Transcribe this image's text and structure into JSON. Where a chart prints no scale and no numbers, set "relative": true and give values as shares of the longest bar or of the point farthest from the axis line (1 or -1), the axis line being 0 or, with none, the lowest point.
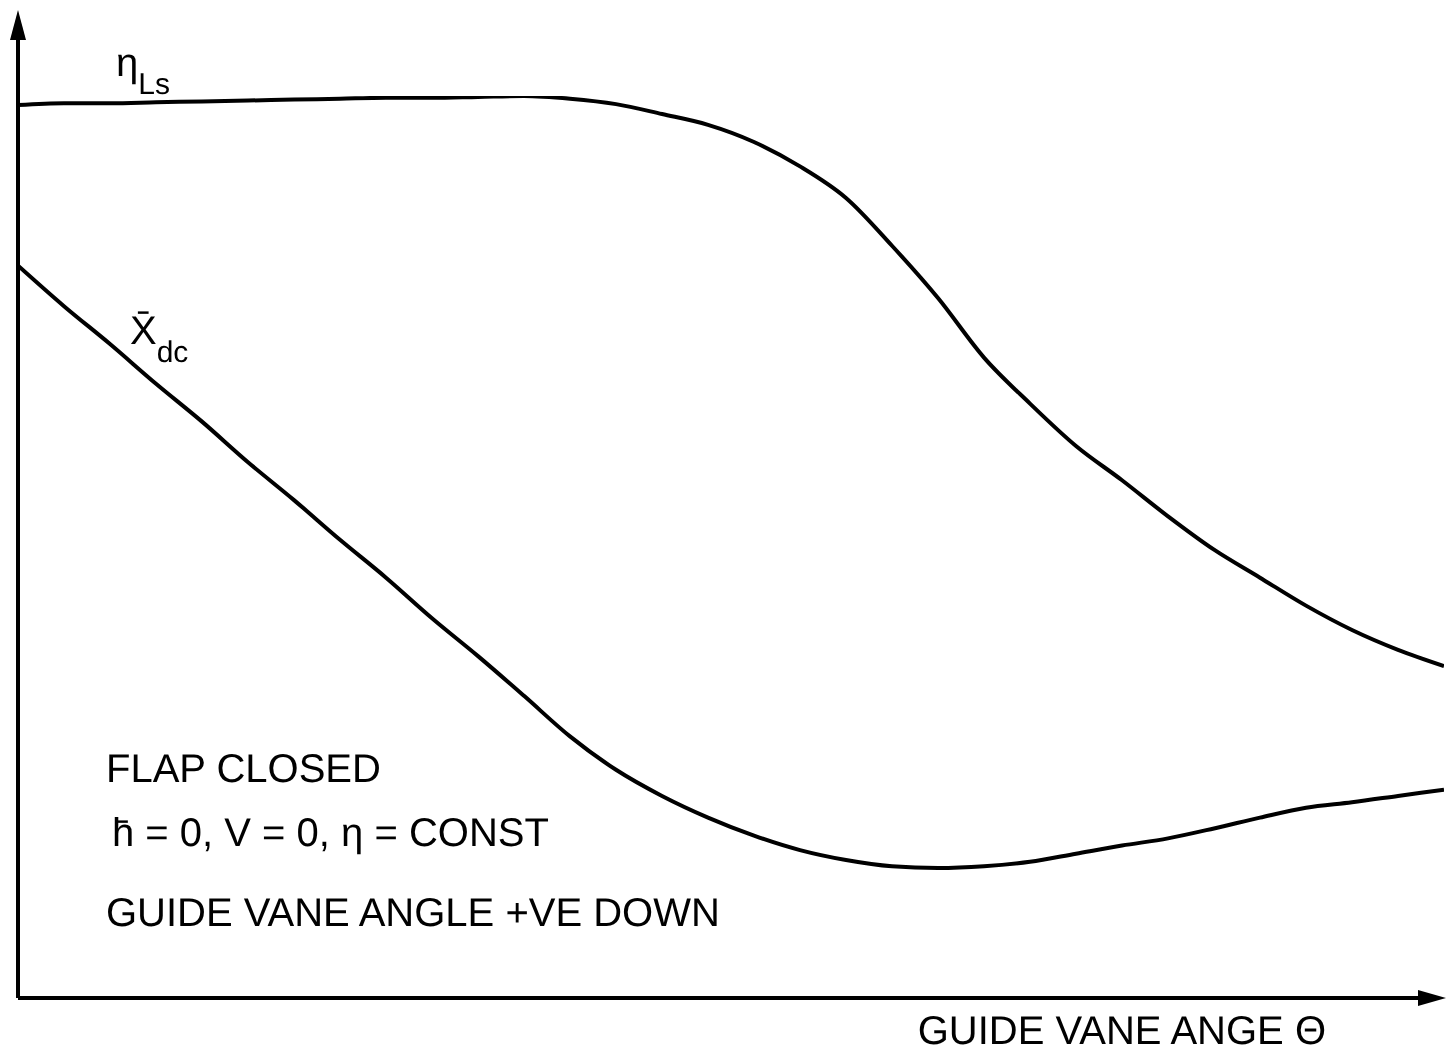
{
  "chart_data": {
    "type": "line",
    "relative": true,
    "marker": "none",
    "xlabel": "GUIDE VANE ANGE Θ",
    "annotations": [
      "FLAP CLOSED",
      "h̄ = 0, V = 0, η = CONST",
      "GUIDE VANE ANGLE +VE DOWN"
    ],
    "categories": [
      null,
      null,
      null,
      null,
      null,
      null,
      null,
      null,
      null,
      null,
      null,
      null,
      null,
      null,
      null,
      null,
      null,
      null,
      null,
      null,
      null,
      null,
      null,
      null,
      null,
      null,
      null,
      null,
      null,
      null,
      null,
      null
    ],
    "series": [
      {
        "name": "η$_{Ls}$",
        "color": "#000000",
        "values": [
          0.99,
          0.992,
          0.992,
          0.993,
          0.994,
          0.995,
          0.996,
          0.997,
          0.998,
          0.998,
          0.999,
          1.0,
          0.997,
          0.991,
          0.98,
          0.968,
          0.949,
          0.922,
          0.887,
          0.834,
          0.776,
          0.71,
          0.659,
          0.612,
          0.574,
          0.534,
          0.497,
          0.466,
          0.435,
          0.408,
          0.386,
          0.368
        ]
      },
      {
        "name": "X̄$_{dc}$",
        "color": "#000000",
        "values": [
          0.812,
          0.767,
          0.725,
          0.681,
          0.639,
          0.594,
          0.552,
          0.508,
          0.466,
          0.421,
          0.379,
          0.335,
          0.29,
          0.253,
          0.224,
          0.2,
          0.18,
          0.164,
          0.153,
          0.146,
          0.144,
          0.146,
          0.151,
          0.16,
          0.169,
          0.177,
          0.188,
          0.2,
          0.211,
          0.217,
          0.224,
          0.231
        ]
      }
    ]
  }
}
